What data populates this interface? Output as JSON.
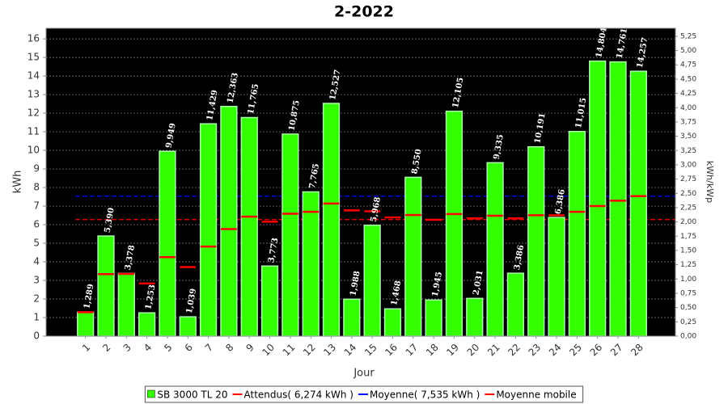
{
  "chart_data": {
    "type": "bar",
    "title": "2-2022",
    "x_label": "Jour",
    "y_label": "kWh",
    "y2_label": "kWh/kWp",
    "categories": [
      "1",
      "2",
      "3",
      "4",
      "5",
      "6",
      "7",
      "8",
      "9",
      "10",
      "11",
      "12",
      "13",
      "14",
      "15",
      "16",
      "17",
      "18",
      "19",
      "20",
      "21",
      "22",
      "23",
      "24",
      "25",
      "26",
      "27",
      "28"
    ],
    "series": [
      {
        "name": "SB 3000 TL 20",
        "color": "#33ff00",
        "values": [
          1.289,
          5.39,
          3.378,
          1.253,
          9.949,
          1.039,
          11.429,
          12.363,
          11.765,
          3.773,
          10.875,
          7.765,
          12.527,
          1.988,
          5.968,
          1.468,
          8.55,
          1.945,
          12.105,
          2.031,
          9.335,
          3.386,
          10.191,
          6.386,
          11.015,
          14.804,
          14.761,
          14.257
        ],
        "value_labels": [
          "1,289",
          "5,390",
          "3,378",
          "1,253",
          "9,949",
          "1,039",
          "11,429",
          "12,363",
          "11,765",
          "3,773",
          "10,875",
          "7,765",
          "12,527",
          "1,988",
          "5,968",
          "1,468",
          "8,550",
          "1,945",
          "12,105",
          "2,031",
          "9,335",
          "3,386",
          "10,191",
          "6,386",
          "11,015",
          "14,804",
          "14,761",
          "14,257"
        ]
      },
      {
        "name": "Moyenne mobile",
        "color": "#ff0000",
        "values": [
          1.29,
          3.34,
          3.35,
          2.83,
          4.25,
          3.72,
          4.82,
          5.76,
          6.43,
          6.16,
          6.59,
          6.69,
          7.14,
          6.77,
          6.72,
          6.39,
          6.52,
          6.26,
          6.57,
          6.34,
          6.48,
          6.34,
          6.51,
          6.51,
          6.69,
          7.0,
          7.29,
          7.535
        ]
      }
    ],
    "reference_lines": [
      {
        "name": "Attendus( 6,274 kWh )",
        "value": 6.274,
        "color": "#ff0000"
      },
      {
        "name": "Moyenne( 7,535 kWh )",
        "value": 7.535,
        "color": "#0000ff"
      }
    ],
    "ylim": [
      0,
      16.57
    ],
    "yticks": [
      0,
      1,
      2,
      3,
      4,
      5,
      6,
      7,
      8,
      9,
      10,
      11,
      12,
      13,
      14,
      15,
      16
    ],
    "y2lim": [
      0,
      5.39
    ],
    "y2ticks": [
      {
        "value": 0,
        "label": "0,00"
      },
      {
        "value": 0.25,
        "label": "0,25"
      },
      {
        "value": 0.5,
        "label": "0,50"
      },
      {
        "value": 0.75,
        "label": "0,75"
      },
      {
        "value": 1,
        "label": "1,00"
      },
      {
        "value": 1.25,
        "label": "1,25"
      },
      {
        "value": 1.5,
        "label": "1,50"
      },
      {
        "value": 1.75,
        "label": "1,75"
      },
      {
        "value": 2,
        "label": "2,00"
      },
      {
        "value": 2.25,
        "label": "2,25"
      },
      {
        "value": 2.5,
        "label": "2,50"
      },
      {
        "value": 2.75,
        "label": "2,75"
      },
      {
        "value": 3,
        "label": "3,00"
      },
      {
        "value": 3.25,
        "label": "3,25"
      },
      {
        "value": 3.5,
        "label": "3,50"
      },
      {
        "value": 3.75,
        "label": "3,75"
      },
      {
        "value": 4,
        "label": "4,00"
      },
      {
        "value": 4.25,
        "label": "4,25"
      },
      {
        "value": 4.5,
        "label": "4,50"
      },
      {
        "value": 4.75,
        "label": "4,75"
      },
      {
        "value": 5,
        "label": "5,00"
      },
      {
        "value": 5.25,
        "label": "5,25"
      }
    ],
    "grid": true,
    "legend": "bottom",
    "background": "#000000"
  }
}
